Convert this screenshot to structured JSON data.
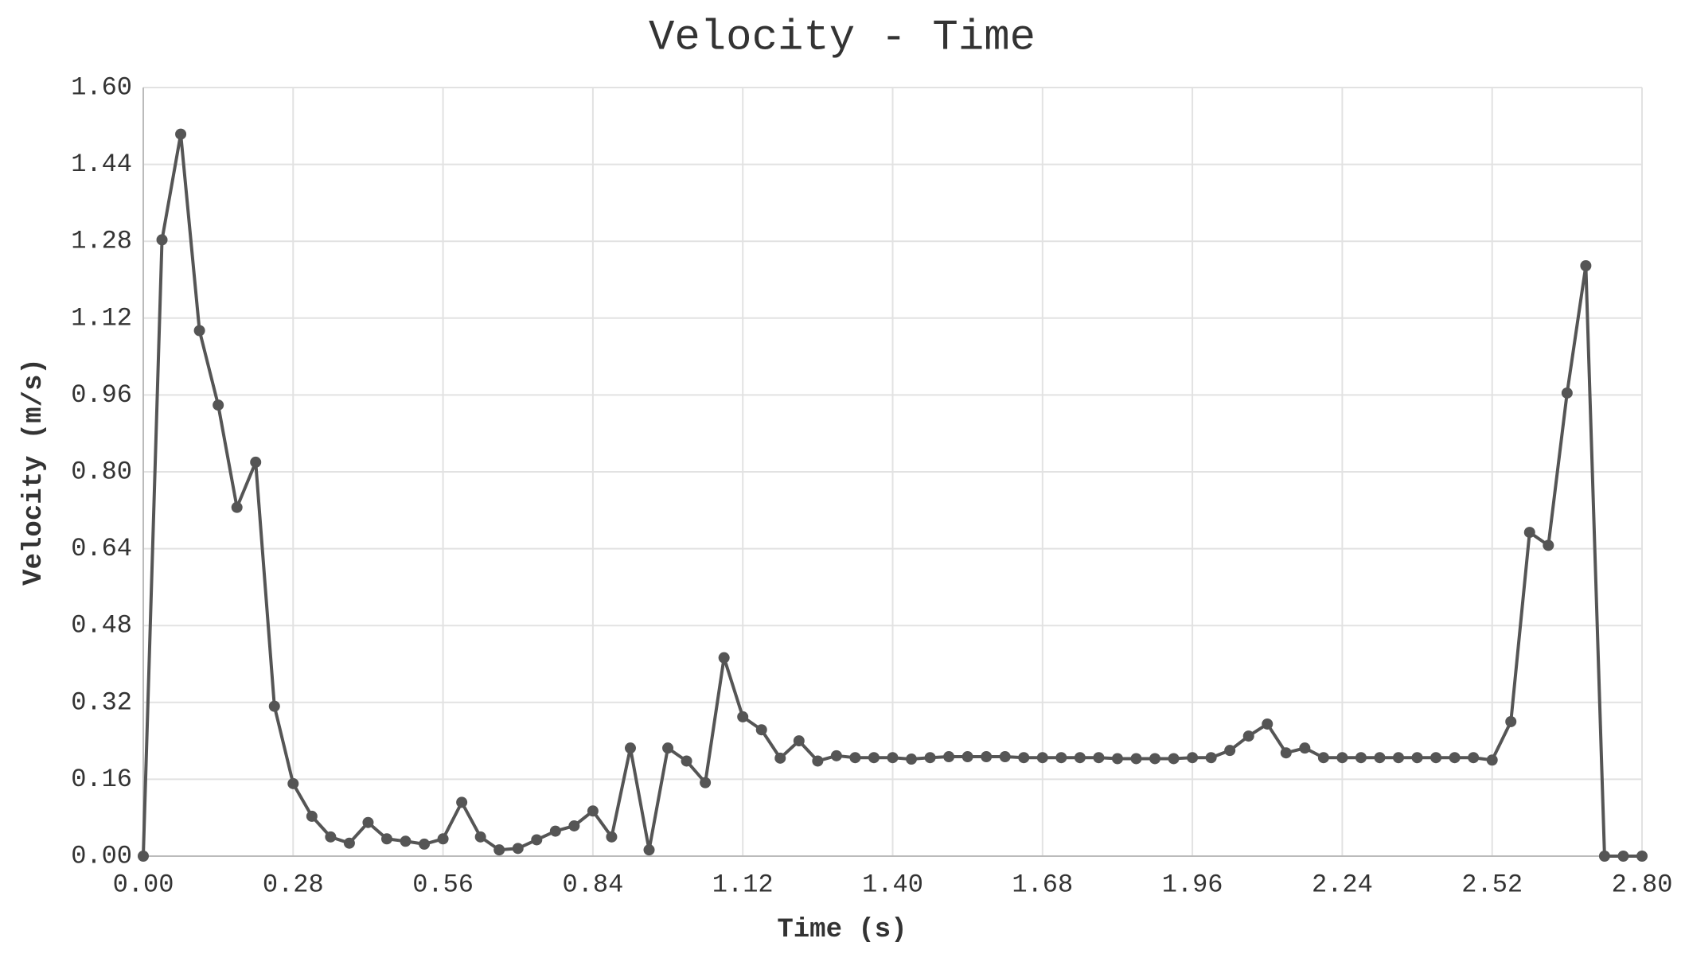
{
  "chart_data": {
    "type": "line",
    "title": "Velocity - Time",
    "xlabel": "Time (s)",
    "ylabel": "Velocity (m/s)",
    "x": [
      0,
      0.035,
      0.07,
      0.105,
      0.14,
      0.175,
      0.21,
      0.245,
      0.28,
      0.315,
      0.35,
      0.385,
      0.42,
      0.455,
      0.49,
      0.525,
      0.56,
      0.595,
      0.63,
      0.665,
      0.7,
      0.735,
      0.77,
      0.805,
      0.84,
      0.875,
      0.91,
      0.945,
      0.98,
      1.015,
      1.05,
      1.085,
      1.12,
      1.155,
      1.19,
      1.225,
      1.26,
      1.295,
      1.33,
      1.365,
      1.4,
      1.435,
      1.47,
      1.505,
      1.54,
      1.575,
      1.61,
      1.645,
      1.68,
      1.715,
      1.75,
      1.785,
      1.82,
      1.855,
      1.89,
      1.925,
      1.96,
      1.995,
      2.03,
      2.065,
      2.1,
      2.135,
      2.17,
      2.205,
      2.24,
      2.275,
      2.31,
      2.345,
      2.38,
      2.415,
      2.45,
      2.485,
      2.52,
      2.555,
      2.59,
      2.625,
      2.66,
      2.695,
      2.73,
      2.765,
      2.8
    ],
    "values": [
      0,
      1.283,
      1.503,
      1.094,
      0.939,
      0.726,
      0.82,
      0.312,
      0.151,
      0.083,
      0.04,
      0.027,
      0.07,
      0.036,
      0.031,
      0.025,
      0.036,
      0.112,
      0.04,
      0.013,
      0.016,
      0.034,
      0.052,
      0.063,
      0.094,
      0.04,
      0.225,
      0.013,
      0.225,
      0.198,
      0.153,
      0.413,
      0.29,
      0.263,
      0.204,
      0.24,
      0.198,
      0.209,
      0.205,
      0.205,
      0.205,
      0.202,
      0.205,
      0.207,
      0.207,
      0.207,
      0.207,
      0.205,
      0.205,
      0.205,
      0.205,
      0.205,
      0.203,
      0.203,
      0.203,
      0.203,
      0.205,
      0.205,
      0.22,
      0.25,
      0.275,
      0.215,
      0.225,
      0.205,
      0.205,
      0.205,
      0.205,
      0.205,
      0.205,
      0.205,
      0.205,
      0.205,
      0.2,
      0.28,
      0.674,
      0.647,
      0.964,
      1.229,
      0,
      0,
      0
    ],
    "color": "#555555",
    "xlim": [
      0,
      2.8
    ],
    "xticks": [
      {
        "value": 0,
        "label": "0.00"
      },
      {
        "value": 0.28,
        "label": "0.28"
      },
      {
        "value": 0.56,
        "label": "0.56"
      },
      {
        "value": 0.84,
        "label": "0.84"
      },
      {
        "value": 1.12,
        "label": "1.12"
      },
      {
        "value": 1.4,
        "label": "1.40"
      },
      {
        "value": 1.68,
        "label": "1.68"
      },
      {
        "value": 1.96,
        "label": "1.96"
      },
      {
        "value": 2.24,
        "label": "2.24"
      },
      {
        "value": 2.52,
        "label": "2.52"
      },
      {
        "value": 2.8,
        "label": "2.80"
      }
    ],
    "ylim": [
      0,
      1.6
    ],
    "yticks": [
      {
        "value": 0,
        "label": "0.00"
      },
      {
        "value": 0.16,
        "label": "0.16"
      },
      {
        "value": 0.32,
        "label": "0.32"
      },
      {
        "value": 0.48,
        "label": "0.48"
      },
      {
        "value": 0.64,
        "label": "0.64"
      },
      {
        "value": 0.8,
        "label": "0.80"
      },
      {
        "value": 0.96,
        "label": "0.96"
      },
      {
        "value": 1.12,
        "label": "1.12"
      },
      {
        "value": 1.28,
        "label": "1.28"
      },
      {
        "value": 1.44,
        "label": "1.44"
      },
      {
        "value": 1.6,
        "label": "1.60"
      }
    ],
    "grid": true
  }
}
